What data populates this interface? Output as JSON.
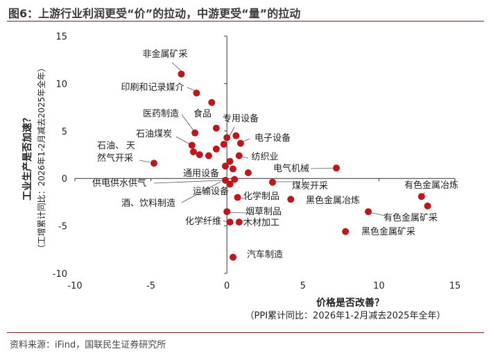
{
  "header": {
    "figure_title": "图6：上游行业利润更受“价”的拉动，中游更受“量”的拉动"
  },
  "footer": {
    "source": "资料来源：iFind，国联民生证券研究所"
  },
  "colors": {
    "point": "#c0161c",
    "rule": "#7a1c1c",
    "axis": "#333333"
  },
  "chart_data": {
    "type": "scatter",
    "xlabel": "价格是否改善？",
    "xlabel_sub": "（PPI累计同比：2026年1-2月减去2025年全年）",
    "ylabel": "工业生产是否加速？",
    "ylabel_sub": "（工增累计同比：2026年1-2月减去2025年全年）",
    "xlim": [
      -10,
      15
    ],
    "ylim": [
      -10,
      15
    ],
    "x_ticks": [
      -10,
      -5,
      0,
      5,
      10,
      15
    ],
    "y_ticks": [
      -10,
      -5,
      0,
      5,
      10,
      15
    ],
    "grid": false,
    "points": [
      {
        "label": "非金属矿采",
        "x": -3.0,
        "y": 11.0
      },
      {
        "label": "印刷和记录媒介",
        "x": -2.0,
        "y": 9.0
      },
      {
        "label": "",
        "x": -1.0,
        "y": 8.0
      },
      {
        "label": "医药制造",
        "x": -2.1,
        "y": 4.8
      },
      {
        "label": "食品",
        "x": -0.7,
        "y": 5.3
      },
      {
        "label": "专用设备",
        "x": 0.6,
        "y": 4.5
      },
      {
        "label": "",
        "x": 0.0,
        "y": 4.3
      },
      {
        "label": "石油煤炭",
        "x": -2.3,
        "y": 3.5
      },
      {
        "label": "电子设备",
        "x": 0.9,
        "y": 3.7
      },
      {
        "label": "",
        "x": -0.2,
        "y": 3.6
      },
      {
        "label": "",
        "x": -2.2,
        "y": 2.8
      },
      {
        "label": "",
        "x": -0.7,
        "y": 3.1
      },
      {
        "label": "",
        "x": -1.8,
        "y": 2.5
      },
      {
        "label": "",
        "x": -1.2,
        "y": 2.4
      },
      {
        "label": "纺织业",
        "x": 0.8,
        "y": 2.4
      },
      {
        "label": "石油、天然气开采",
        "x": -4.8,
        "y": 1.6
      },
      {
        "label": "",
        "x": 0.2,
        "y": 1.8
      },
      {
        "label": "",
        "x": -0.1,
        "y": 1.3
      },
      {
        "label": "通用设备",
        "x": 0.4,
        "y": 1.0
      },
      {
        "label": "",
        "x": 1.4,
        "y": 0.6
      },
      {
        "label": "电气机械",
        "x": 7.2,
        "y": 1.1
      },
      {
        "label": "供电供水供气",
        "x": -0.1,
        "y": -0.2
      },
      {
        "label": "",
        "x": 0.5,
        "y": -0.1
      },
      {
        "label": "运输设备",
        "x": 0.2,
        "y": -0.6
      },
      {
        "label": "煤炭开采",
        "x": 3.0,
        "y": -0.4
      },
      {
        "label": "化学制品",
        "x": 0.7,
        "y": -2.0
      },
      {
        "label": "黑色金属冶炼",
        "x": 4.2,
        "y": -2.2
      },
      {
        "label": "有色金属冶炼",
        "x": 12.8,
        "y": -1.9
      },
      {
        "label": "",
        "x": 13.2,
        "y": -2.9
      },
      {
        "label": "烟草制品",
        "x": 0.0,
        "y": -3.5
      },
      {
        "label": "有色金属矿采",
        "x": 9.3,
        "y": -3.5
      },
      {
        "label": "化学纤维",
        "x": 0.2,
        "y": -4.6
      },
      {
        "label": "木材加工",
        "x": 0.8,
        "y": -4.6
      },
      {
        "label": "黑色金属矿采",
        "x": 7.8,
        "y": -5.6
      },
      {
        "label": "汽车制造",
        "x": 0.4,
        "y": -8.3
      }
    ],
    "annotation_lines": [
      "石油、",
      "天",
      "然气开采"
    ],
    "alcohol_label": "酒、饮料制造"
  }
}
